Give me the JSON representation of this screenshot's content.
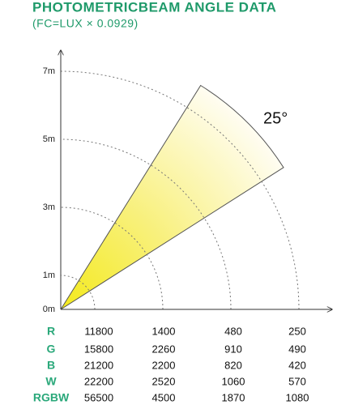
{
  "header": {
    "title": "PHOTOMETRICBEAM ANGLE DATA",
    "subtitle": "(FC=LUX × 0.0929)"
  },
  "diagram": {
    "distance_labels": [
      "0m",
      "1m",
      "3m",
      "5m",
      "7m"
    ],
    "angle_label": "25°"
  },
  "table": {
    "rows": [
      [
        "R",
        11800,
        1400,
        480,
        250
      ],
      [
        "G",
        15800,
        2260,
        910,
        490
      ],
      [
        "B",
        21200,
        2200,
        820,
        420
      ],
      [
        "W",
        22200,
        2520,
        1060,
        570
      ],
      [
        "RGBW",
        56500,
        4500,
        1870,
        1080
      ]
    ]
  }
}
